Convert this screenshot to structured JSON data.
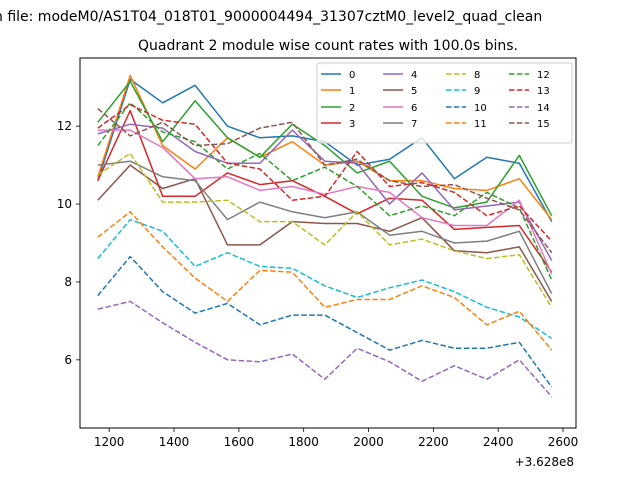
{
  "chart_data": {
    "type": "line",
    "suptitle": "n file: modeM0/AS1T04_018T01_9000004494_31307cztM0_level2_quad_clean",
    "title": "Quadrant 2 module wise count rates with 100.0s bins.",
    "xlabel": "",
    "ylabel": "",
    "x_offset_label": "+3.628e8",
    "xlim": [
      1110,
      2640
    ],
    "ylim": [
      4.25,
      13.75
    ],
    "xticks": [
      1200,
      1400,
      1600,
      1800,
      2000,
      2200,
      2400,
      2600
    ],
    "yticks": [
      6,
      8,
      10,
      12
    ],
    "x": [
      1165,
      1265,
      1365,
      1465,
      1565,
      1665,
      1765,
      1865,
      1965,
      2065,
      2165,
      2265,
      2365,
      2465,
      2565
    ],
    "legend": {
      "location": "top-right",
      "columns": 4
    },
    "series": [
      {
        "name": "0",
        "color": "#1f77b4",
        "dash": "solid",
        "values": [
          10.6,
          13.2,
          12.6,
          13.05,
          12.0,
          11.7,
          11.75,
          11.6,
          11.0,
          11.15,
          11.7,
          10.65,
          11.2,
          11.05,
          9.55
        ]
      },
      {
        "name": "1",
        "color": "#ff7f0e",
        "dash": "solid",
        "values": [
          10.7,
          13.3,
          11.5,
          10.9,
          11.7,
          11.2,
          11.6,
          11.0,
          11.1,
          10.6,
          10.6,
          10.4,
          10.35,
          10.65,
          9.6
        ]
      },
      {
        "name": "2",
        "color": "#2ca02c",
        "dash": "solid",
        "values": [
          12.1,
          13.15,
          11.6,
          12.65,
          11.7,
          11.2,
          12.05,
          11.5,
          10.8,
          11.1,
          10.2,
          9.9,
          10.05,
          11.25,
          9.7
        ]
      },
      {
        "name": "3",
        "color": "#d62728",
        "dash": "solid",
        "values": [
          10.6,
          12.4,
          10.2,
          10.2,
          10.8,
          10.5,
          10.6,
          10.2,
          9.75,
          10.15,
          10.1,
          9.35,
          9.4,
          9.45,
          8.25
        ]
      },
      {
        "name": "4",
        "color": "#9467bd",
        "dash": "solid",
        "values": [
          11.8,
          12.05,
          11.95,
          11.35,
          11.05,
          11.05,
          11.9,
          11.1,
          11.05,
          10.0,
          10.8,
          9.85,
          9.95,
          10.05,
          8.55
        ]
      },
      {
        "name": "5",
        "color": "#8c564b",
        "dash": "solid",
        "values": [
          10.1,
          11.0,
          10.4,
          10.65,
          8.95,
          8.95,
          9.55,
          9.5,
          9.5,
          9.3,
          9.65,
          8.8,
          8.75,
          8.9,
          7.5
        ]
      },
      {
        "name": "6",
        "color": "#e377c2",
        "dash": "solid",
        "values": [
          11.9,
          11.9,
          11.45,
          10.65,
          10.7,
          10.35,
          10.45,
          10.25,
          10.45,
          10.3,
          9.65,
          9.45,
          9.45,
          10.1,
          8.2
        ]
      },
      {
        "name": "7",
        "color": "#7f7f7f",
        "dash": "solid",
        "values": [
          11.0,
          11.1,
          10.7,
          10.6,
          9.6,
          10.05,
          9.8,
          9.65,
          9.8,
          9.2,
          9.3,
          9.0,
          9.05,
          9.3,
          7.7
        ]
      },
      {
        "name": "8",
        "color": "#bcbd22",
        "dash": "dashed",
        "values": [
          10.75,
          11.3,
          10.05,
          10.05,
          10.1,
          9.55,
          9.55,
          8.95,
          9.8,
          8.95,
          9.1,
          8.8,
          8.6,
          8.7,
          7.35
        ]
      },
      {
        "name": "9",
        "color": "#17becf",
        "dash": "dashed",
        "values": [
          8.6,
          9.6,
          9.3,
          8.4,
          8.75,
          8.4,
          8.35,
          7.9,
          7.6,
          7.85,
          8.05,
          7.75,
          7.35,
          7.1,
          6.55
        ]
      },
      {
        "name": "10",
        "color": "#1f77b4",
        "dash": "dashed",
        "values": [
          7.65,
          8.65,
          7.75,
          7.2,
          7.45,
          6.9,
          7.15,
          7.15,
          6.7,
          6.25,
          6.5,
          6.3,
          6.3,
          6.45,
          5.3
        ]
      },
      {
        "name": "11",
        "color": "#ff7f0e",
        "dash": "dashed",
        "values": [
          9.15,
          9.8,
          8.9,
          8.1,
          7.5,
          8.3,
          8.25,
          7.35,
          7.55,
          7.55,
          7.9,
          7.6,
          6.9,
          7.25,
          6.25
        ]
      },
      {
        "name": "12",
        "color": "#2ca02c",
        "dash": "dashed",
        "values": [
          11.5,
          12.6,
          11.85,
          11.6,
          10.9,
          11.3,
          10.6,
          10.95,
          10.45,
          9.7,
          9.95,
          9.7,
          10.3,
          9.9,
          8.05
        ]
      },
      {
        "name": "13",
        "color": "#d62728",
        "dash": "dashed",
        "values": [
          11.95,
          12.55,
          12.15,
          12.05,
          11.05,
          10.9,
          10.1,
          10.2,
          11.35,
          10.45,
          10.55,
          10.3,
          9.7,
          9.95,
          9.05
        ]
      },
      {
        "name": "14",
        "color": "#9467bd",
        "dash": "dashed",
        "values": [
          7.3,
          7.5,
          6.95,
          6.45,
          6.0,
          5.95,
          6.15,
          5.5,
          6.3,
          5.95,
          5.45,
          5.85,
          5.5,
          6.0,
          5.05
        ]
      },
      {
        "name": "15",
        "color": "#8c564b",
        "dash": "dashed",
        "values": [
          12.45,
          11.75,
          12.1,
          11.5,
          11.55,
          11.95,
          12.1,
          11.0,
          11.15,
          10.6,
          10.45,
          10.5,
          10.15,
          9.85,
          8.75
        ]
      }
    ]
  }
}
